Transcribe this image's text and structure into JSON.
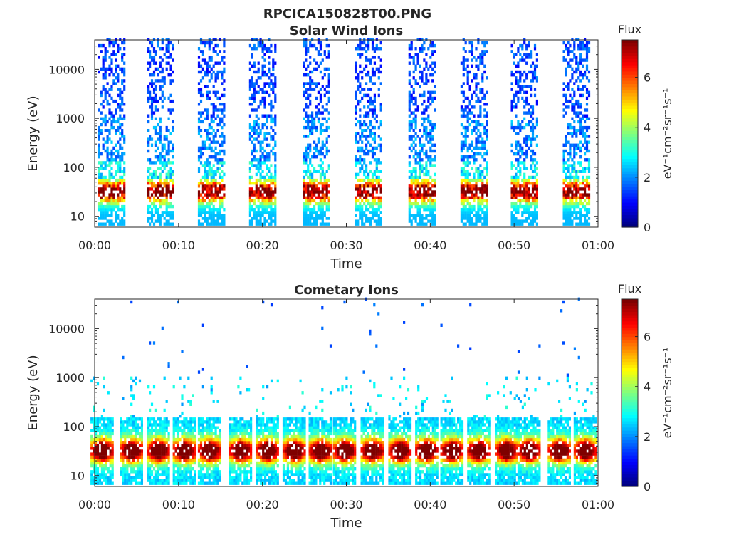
{
  "figure": {
    "title": "RPCICA150828T00.PNG"
  },
  "colormap": {
    "name": "jet",
    "stops": [
      "#00007f",
      "#0000ff",
      "#007fff",
      "#00ffff",
      "#7fff7f",
      "#ffff00",
      "#ff7f00",
      "#ff0000",
      "#7f0000"
    ]
  },
  "chart_data": [
    {
      "type": "heatmap",
      "title": "Solar Wind Ions",
      "xlabel": "Time",
      "ylabel": "Energy (eV)",
      "x_ticks": [
        "00:00",
        "00:10",
        "00:20",
        "00:30",
        "00:40",
        "00:50",
        "01:00"
      ],
      "xlim_minutes": [
        0,
        60
      ],
      "y_scale": "log",
      "y_ticks": [
        10,
        100,
        1000,
        10000
      ],
      "ylim": [
        6,
        40000
      ],
      "colorbar": {
        "label": "Flux",
        "units": "eV⁻¹cm⁻²sr⁻¹s⁻¹",
        "ticks": [
          0,
          2,
          4,
          6
        ],
        "range": [
          0,
          7.5
        ]
      },
      "sweep_start_minutes": [
        0.4,
        6.2,
        12.3,
        18.4,
        24.8,
        31.0,
        37.4,
        43.6,
        49.6,
        55.8
      ],
      "sweep_duration_minutes": 3.2,
      "low_energy_peak_eV": 30,
      "peak_flux": 6.6
    },
    {
      "type": "heatmap",
      "title": "Cometary Ions",
      "xlabel": "Time",
      "ylabel": "Energy (eV)",
      "x_ticks": [
        "00:00",
        "00:10",
        "00:20",
        "00:30",
        "00:40",
        "00:50",
        "01:00"
      ],
      "xlim_minutes": [
        0,
        60
      ],
      "y_scale": "log",
      "y_ticks": [
        10,
        100,
        1000,
        10000
      ],
      "ylim": [
        6,
        40000
      ],
      "colorbar": {
        "label": "Flux",
        "units": "eV⁻¹cm⁻²sr⁻¹s⁻¹",
        "ticks": [
          0,
          2,
          4,
          6
        ],
        "range": [
          0,
          7.5
        ]
      },
      "burst_center_minutes": [
        0.8,
        4.3,
        7.5,
        10.6,
        13.6,
        17.3,
        20.5,
        23.7,
        26.8,
        29.7,
        33.0,
        36.3,
        39.5,
        42.5,
        45.7,
        49.0,
        51.7,
        55.3,
        58.4
      ],
      "low_energy_peak_eV": 30,
      "peak_flux": 7.2
    }
  ]
}
